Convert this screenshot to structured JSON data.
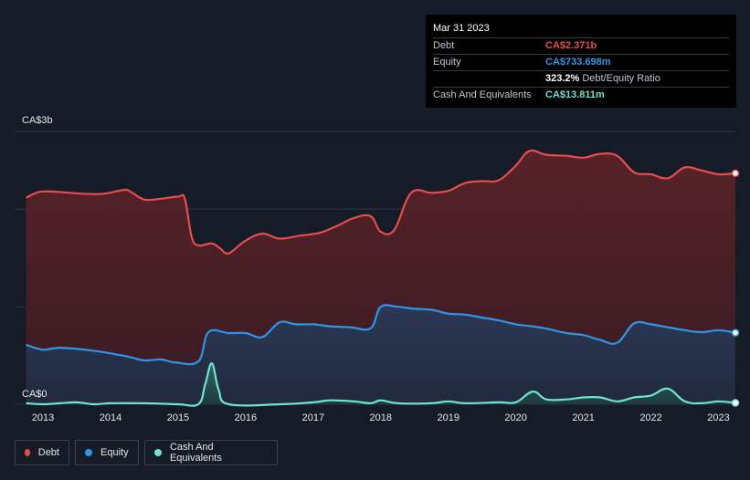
{
  "tooltip": {
    "date": "Mar 31 2023",
    "rows": [
      {
        "label": "Debt",
        "value": "CA$2.371b",
        "color": "#e64d4d"
      },
      {
        "label": "Equity",
        "value": "CA$733.698m",
        "color": "#2f96e6"
      },
      {
        "label": "",
        "value": "323.2%",
        "suffix": "Debt/Equity Ratio",
        "color": "#ffffff"
      },
      {
        "label": "Cash And Equivalents",
        "value": "CA$13.811m",
        "color": "#6fe3cf"
      }
    ]
  },
  "legend": [
    {
      "label": "Debt",
      "color": "#e64d4d"
    },
    {
      "label": "Equity",
      "color": "#2f96e6"
    },
    {
      "label": "Cash And Equivalents",
      "color": "#6fe3cf"
    }
  ],
  "chart_data": {
    "type": "area",
    "y_unit": "CA$ billions",
    "ylim": [
      0,
      2.8
    ],
    "y_ticks": [
      {
        "value": 2.8,
        "label": "CA$3b"
      },
      {
        "value": 0,
        "label": "CA$0"
      }
    ],
    "xlim": [
      2012.58,
      2023.25
    ],
    "x_ticks": [
      "2013",
      "2014",
      "2015",
      "2016",
      "2017",
      "2018",
      "2019",
      "2020",
      "2021",
      "2022",
      "2023"
    ],
    "grid": true,
    "series": [
      {
        "name": "Debt",
        "color": "#e64d4d",
        "points": [
          [
            2012.75,
            2.12
          ],
          [
            2012.95,
            2.18
          ],
          [
            2013.2,
            2.18
          ],
          [
            2013.6,
            2.16
          ],
          [
            2013.9,
            2.16
          ],
          [
            2014.2,
            2.2
          ],
          [
            2014.3,
            2.18
          ],
          [
            2014.5,
            2.1
          ],
          [
            2014.75,
            2.11
          ],
          [
            2015.0,
            2.13
          ],
          [
            2015.1,
            2.11
          ],
          [
            2015.2,
            1.72
          ],
          [
            2015.3,
            1.63
          ],
          [
            2015.5,
            1.65
          ],
          [
            2015.62,
            1.6
          ],
          [
            2015.75,
            1.55
          ],
          [
            2016.0,
            1.68
          ],
          [
            2016.25,
            1.75
          ],
          [
            2016.5,
            1.7
          ],
          [
            2016.8,
            1.73
          ],
          [
            2017.1,
            1.76
          ],
          [
            2017.35,
            1.83
          ],
          [
            2017.6,
            1.91
          ],
          [
            2017.85,
            1.93
          ],
          [
            2018.0,
            1.77
          ],
          [
            2018.2,
            1.79
          ],
          [
            2018.45,
            2.17
          ],
          [
            2018.75,
            2.17
          ],
          [
            2019.0,
            2.19
          ],
          [
            2019.25,
            2.27
          ],
          [
            2019.5,
            2.29
          ],
          [
            2019.75,
            2.3
          ],
          [
            2020.0,
            2.45
          ],
          [
            2020.2,
            2.6
          ],
          [
            2020.45,
            2.56
          ],
          [
            2020.75,
            2.55
          ],
          [
            2021.0,
            2.53
          ],
          [
            2021.25,
            2.57
          ],
          [
            2021.5,
            2.55
          ],
          [
            2021.75,
            2.38
          ],
          [
            2022.0,
            2.36
          ],
          [
            2022.25,
            2.32
          ],
          [
            2022.5,
            2.43
          ],
          [
            2022.75,
            2.4
          ],
          [
            2023.0,
            2.36
          ],
          [
            2023.25,
            2.37
          ]
        ]
      },
      {
        "name": "Equity",
        "color": "#2f96e6",
        "points": [
          [
            2012.75,
            0.61
          ],
          [
            2013.0,
            0.56
          ],
          [
            2013.25,
            0.58
          ],
          [
            2013.75,
            0.55
          ],
          [
            2014.25,
            0.49
          ],
          [
            2014.5,
            0.45
          ],
          [
            2014.75,
            0.46
          ],
          [
            2014.95,
            0.43
          ],
          [
            2015.3,
            0.44
          ],
          [
            2015.45,
            0.74
          ],
          [
            2015.75,
            0.73
          ],
          [
            2016.0,
            0.73
          ],
          [
            2016.25,
            0.69
          ],
          [
            2016.5,
            0.84
          ],
          [
            2016.75,
            0.82
          ],
          [
            2017.0,
            0.82
          ],
          [
            2017.25,
            0.8
          ],
          [
            2017.55,
            0.79
          ],
          [
            2017.85,
            0.78
          ],
          [
            2018.0,
            1.0
          ],
          [
            2018.25,
            1.0
          ],
          [
            2018.5,
            0.98
          ],
          [
            2018.75,
            0.97
          ],
          [
            2019.0,
            0.93
          ],
          [
            2019.25,
            0.92
          ],
          [
            2019.5,
            0.89
          ],
          [
            2019.75,
            0.86
          ],
          [
            2020.0,
            0.82
          ],
          [
            2020.25,
            0.8
          ],
          [
            2020.5,
            0.77
          ],
          [
            2020.75,
            0.73
          ],
          [
            2021.0,
            0.71
          ],
          [
            2021.25,
            0.66
          ],
          [
            2021.5,
            0.63
          ],
          [
            2021.75,
            0.83
          ],
          [
            2022.0,
            0.82
          ],
          [
            2022.25,
            0.79
          ],
          [
            2022.5,
            0.76
          ],
          [
            2022.75,
            0.74
          ],
          [
            2023.0,
            0.76
          ],
          [
            2023.25,
            0.734
          ]
        ]
      },
      {
        "name": "Cash And Equivalents",
        "color": "#6fe3cf",
        "points": [
          [
            2012.75,
            0.01
          ],
          [
            2013.0,
            0.0
          ],
          [
            2013.25,
            0.01
          ],
          [
            2013.5,
            0.02
          ],
          [
            2013.75,
            0.0
          ],
          [
            2014.0,
            0.01
          ],
          [
            2014.5,
            0.01
          ],
          [
            2015.0,
            0.0
          ],
          [
            2015.3,
            0.0
          ],
          [
            2015.4,
            0.2
          ],
          [
            2015.5,
            0.42
          ],
          [
            2015.6,
            0.15
          ],
          [
            2015.75,
            0.0
          ],
          [
            2016.5,
            0.0
          ],
          [
            2017.0,
            0.02
          ],
          [
            2017.25,
            0.04
          ],
          [
            2017.6,
            0.03
          ],
          [
            2017.85,
            0.01
          ],
          [
            2018.0,
            0.04
          ],
          [
            2018.25,
            0.01
          ],
          [
            2018.75,
            0.01
          ],
          [
            2019.0,
            0.03
          ],
          [
            2019.25,
            0.01
          ],
          [
            2019.75,
            0.02
          ],
          [
            2020.0,
            0.02
          ],
          [
            2020.25,
            0.13
          ],
          [
            2020.45,
            0.05
          ],
          [
            2020.75,
            0.05
          ],
          [
            2021.0,
            0.07
          ],
          [
            2021.25,
            0.07
          ],
          [
            2021.5,
            0.03
          ],
          [
            2021.75,
            0.07
          ],
          [
            2022.0,
            0.09
          ],
          [
            2022.25,
            0.16
          ],
          [
            2022.5,
            0.03
          ],
          [
            2022.75,
            0.01
          ],
          [
            2023.0,
            0.03
          ],
          [
            2023.25,
            0.014
          ]
        ]
      }
    ]
  }
}
